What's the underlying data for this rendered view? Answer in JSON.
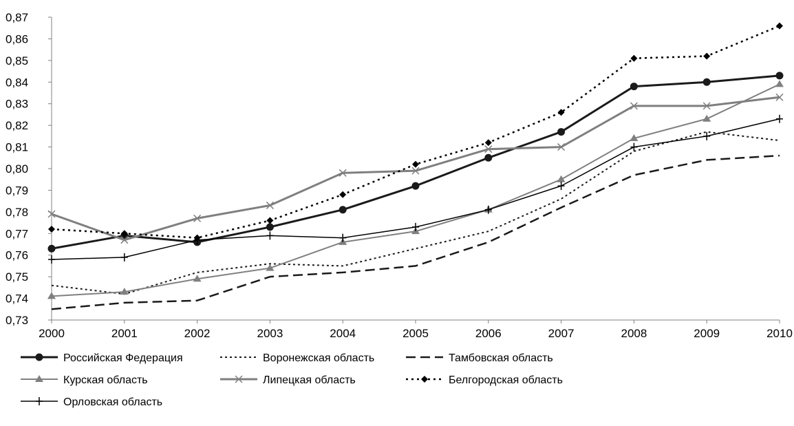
{
  "chart_data": {
    "type": "line",
    "title": "",
    "xlabel": "",
    "ylabel": "",
    "categories": [
      "2000",
      "2001",
      "2002",
      "2003",
      "2004",
      "2005",
      "2006",
      "2007",
      "2008",
      "2009",
      "2010"
    ],
    "ylim": [
      0.73,
      0.87
    ],
    "yticks": [
      "0,73",
      "0,74",
      "0,75",
      "0,76",
      "0,77",
      "0,78",
      "0,79",
      "0,80",
      "0,81",
      "0,82",
      "0,83",
      "0,84",
      "0,85",
      "0,86",
      "0,87"
    ],
    "grid": false,
    "legend_position": "bottom",
    "series": [
      {
        "name": "Российская Федерация",
        "color": "#1a1a1a",
        "style": "solid-thick",
        "marker": "circle",
        "values": [
          0.763,
          0.769,
          0.766,
          0.773,
          0.781,
          0.792,
          0.805,
          0.817,
          0.838,
          0.84,
          0.843
        ]
      },
      {
        "name": "Воронежская область",
        "color": "#1a1a1a",
        "style": "dotted",
        "marker": "none",
        "values": [
          0.746,
          0.742,
          0.752,
          0.756,
          0.755,
          0.763,
          0.771,
          0.786,
          0.808,
          0.817,
          0.813
        ]
      },
      {
        "name": "Тамбовская область",
        "color": "#1a1a1a",
        "style": "dashed-thick",
        "marker": "none",
        "values": [
          0.735,
          0.738,
          0.739,
          0.75,
          0.752,
          0.755,
          0.766,
          0.782,
          0.797,
          0.804,
          0.806
        ]
      },
      {
        "name": "Курская область",
        "color": "#808080",
        "style": "solid",
        "marker": "triangle",
        "values": [
          0.741,
          0.743,
          0.749,
          0.754,
          0.766,
          0.771,
          0.781,
          0.795,
          0.814,
          0.823,
          0.839
        ]
      },
      {
        "name": "Липецкая область",
        "color": "#7f7f7f",
        "style": "solid-thick",
        "marker": "x",
        "values": [
          0.779,
          0.767,
          0.777,
          0.783,
          0.798,
          0.799,
          0.809,
          0.81,
          0.829,
          0.829,
          0.833
        ]
      },
      {
        "name": "Белгородская область",
        "color": "#000000",
        "style": "dotted-thick",
        "marker": "diamond",
        "values": [
          0.772,
          0.77,
          0.768,
          0.776,
          0.788,
          0.802,
          0.812,
          0.826,
          0.851,
          0.852,
          0.866
        ]
      },
      {
        "name": "Орловская область",
        "color": "#000000",
        "style": "solid-thin",
        "marker": "plus",
        "values": [
          0.758,
          0.759,
          0.767,
          0.769,
          0.768,
          0.773,
          0.781,
          0.792,
          0.81,
          0.815,
          0.823
        ]
      }
    ]
  }
}
